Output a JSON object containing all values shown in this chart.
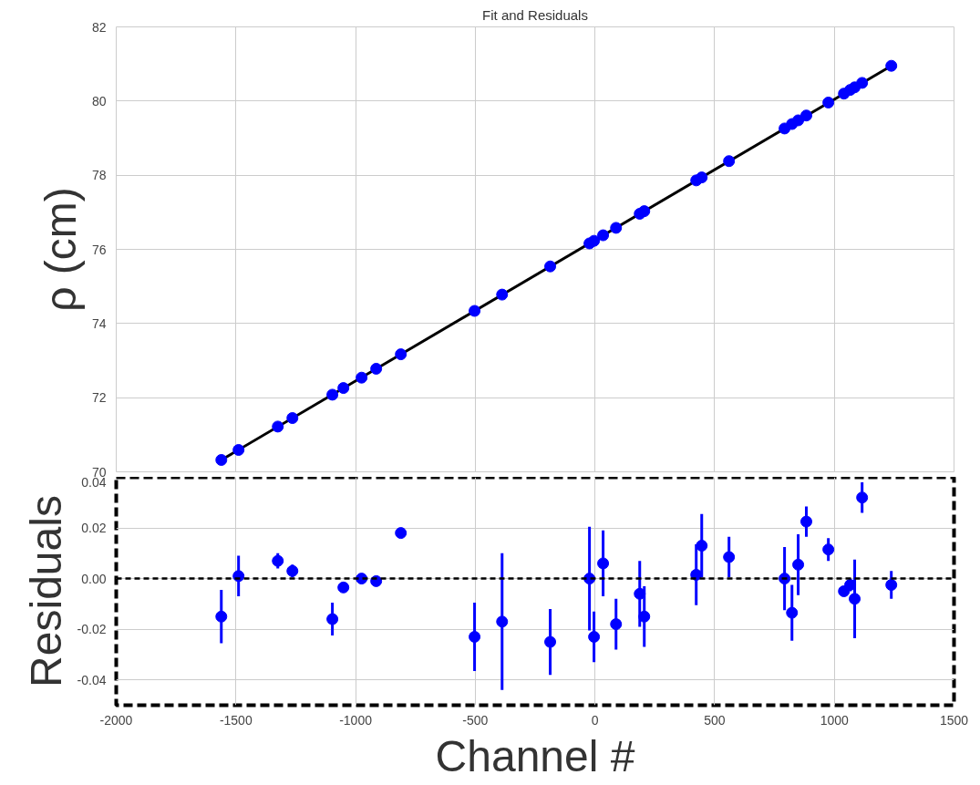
{
  "chart_data": [
    {
      "type": "scatter",
      "title": "Fit and Residuals",
      "ylabel": "ρ (cm)",
      "xlim": [
        -2000,
        1500
      ],
      "xticks": [
        -2000,
        -1500,
        -1000,
        -500,
        0,
        500,
        1000,
        1500
      ],
      "ylim": [
        70,
        82
      ],
      "yticks": [
        70,
        72,
        74,
        76,
        78,
        80,
        82
      ],
      "grid": true,
      "tick_labels": "y",
      "series": [
        {
          "type": "line",
          "color": "#000000",
          "line_style": "solid",
          "marker": "none",
          "x": [
            -1561,
            1238
          ],
          "values": [
            70.32,
            80.95
          ]
        },
        {
          "color": "#0000ff",
          "marker": "circle",
          "x": [
            -1561,
            -1489,
            -1325,
            -1264,
            -1097,
            -1051,
            -975,
            -914,
            -811,
            -503,
            -388,
            -187,
            -23,
            -4,
            34,
            88,
            187,
            206,
            423,
            446,
            560,
            792,
            823,
            849,
            883,
            975,
            1040,
            1066,
            1085,
            1116,
            1238
          ],
          "values": [
            70.32,
            70.59,
            71.22,
            71.45,
            72.08,
            72.26,
            72.54,
            72.78,
            73.17,
            74.34,
            74.78,
            75.54,
            76.16,
            76.23,
            76.38,
            76.58,
            76.96,
            77.03,
            77.86,
            77.94,
            78.38,
            79.26,
            79.38,
            79.48,
            79.61,
            79.96,
            80.2,
            80.3,
            80.37,
            80.49,
            80.95
          ]
        }
      ]
    },
    {
      "type": "scatter",
      "xlabel": "Channel #",
      "ylabel": "Residuals",
      "xlim": [
        -2000,
        1500
      ],
      "xticks": [
        -2000,
        -1500,
        -1000,
        -500,
        0,
        500,
        1000,
        1500
      ],
      "ylim": [
        -0.05,
        0.04
      ],
      "yticks": [
        {
          "value": -0.04,
          "label": "-0.04"
        },
        {
          "value": -0.02,
          "label": "-0.02"
        },
        {
          "value": 0,
          "label": "0.00"
        },
        {
          "value": 0.02,
          "label": "0.02"
        },
        {
          "value": 0.04,
          "label": "0.04"
        }
      ],
      "grid": true,
      "ref_lines": [
        {
          "axis": "y",
          "value": 0,
          "color": "#000000",
          "line_style": "dashed"
        }
      ],
      "series": [
        {
          "color": "#0000ff",
          "marker": "circle",
          "x": [
            -1561,
            -1489,
            -1325,
            -1264,
            -1097,
            -1051,
            -975,
            -914,
            -811,
            -503,
            -388,
            -187,
            -23,
            -4,
            34,
            88,
            187,
            206,
            423,
            446,
            560,
            792,
            823,
            849,
            883,
            975,
            1040,
            1066,
            1085,
            1116,
            1238
          ],
          "values": [
            -0.015,
            0.001,
            0.007,
            0.003,
            -0.016,
            -0.0035,
            0.0,
            -0.001,
            0.018,
            -0.023,
            -0.017,
            -0.025,
            0.0,
            -0.023,
            0.006,
            -0.018,
            -0.006,
            -0.015,
            0.0015,
            0.013,
            0.0085,
            0.0,
            -0.0135,
            0.0055,
            0.0225,
            0.0115,
            -0.005,
            -0.0025,
            -0.008,
            0.032,
            -0.0025
          ],
          "errors": [
            0.0105,
            0.008,
            0.003,
            0.0025,
            0.0065,
            null,
            null,
            null,
            null,
            0.0135,
            0.027,
            0.013,
            0.0205,
            0.01,
            0.013,
            0.01,
            0.013,
            0.012,
            0.012,
            0.0125,
            0.008,
            0.0125,
            0.011,
            0.012,
            0.006,
            0.0045,
            null,
            0.0025,
            0.0155,
            0.006,
            0.0055
          ]
        }
      ]
    }
  ]
}
